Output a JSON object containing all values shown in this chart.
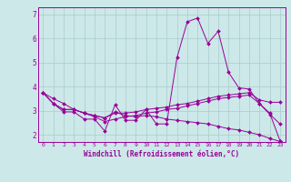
{
  "background_color": "#cce8e8",
  "line_color": "#990099",
  "grid_color": "#aacccc",
  "xlabel": "Windchill (Refroidissement éolien,°C)",
  "xlim": [
    -0.5,
    23.5
  ],
  "ylim": [
    1.7,
    7.3
  ],
  "yticks": [
    2,
    3,
    4,
    5,
    6,
    7
  ],
  "xticks": [
    0,
    1,
    2,
    3,
    4,
    5,
    6,
    7,
    8,
    9,
    10,
    11,
    12,
    13,
    14,
    15,
    16,
    17,
    18,
    19,
    20,
    21,
    22,
    23
  ],
  "lines": [
    {
      "x": [
        0,
        1,
        2,
        3,
        4,
        5,
        6,
        7,
        8,
        9,
        10,
        11,
        12,
        13,
        14,
        15,
        16,
        17,
        18,
        19,
        20,
        21,
        22,
        23
      ],
      "y": [
        3.75,
        3.3,
        2.95,
        2.95,
        2.65,
        2.65,
        2.15,
        3.25,
        2.6,
        2.6,
        3.05,
        2.45,
        2.45,
        5.2,
        6.7,
        6.85,
        5.8,
        6.3,
        4.6,
        3.95,
        3.9,
        3.3,
        2.85,
        2.45
      ]
    },
    {
      "x": [
        0,
        1,
        2,
        3,
        4,
        5,
        6,
        7,
        8,
        9,
        10,
        11,
        12,
        13,
        14,
        15,
        16,
        17,
        18,
        19,
        20,
        21,
        22,
        23
      ],
      "y": [
        3.75,
        3.3,
        3.05,
        3.05,
        2.9,
        2.8,
        2.7,
        2.9,
        2.9,
        2.95,
        3.05,
        3.1,
        3.15,
        3.25,
        3.3,
        3.4,
        3.5,
        3.6,
        3.65,
        3.7,
        3.75,
        3.45,
        3.35,
        3.35
      ]
    },
    {
      "x": [
        0,
        1,
        2,
        3,
        4,
        5,
        6,
        7,
        8,
        9,
        10,
        11,
        12,
        13,
        14,
        15,
        16,
        17,
        18,
        19,
        20,
        21,
        22,
        23
      ],
      "y": [
        3.75,
        3.5,
        3.3,
        3.05,
        2.9,
        2.75,
        2.55,
        2.65,
        2.75,
        2.8,
        2.9,
        2.95,
        3.05,
        3.1,
        3.2,
        3.3,
        3.4,
        3.5,
        3.55,
        3.6,
        3.65,
        3.3,
        2.9,
        1.75
      ]
    },
    {
      "x": [
        0,
        1,
        2,
        3,
        4,
        5,
        6,
        7,
        8,
        9,
        10,
        11,
        12,
        13,
        14,
        15,
        16,
        17,
        18,
        19,
        20,
        21,
        22,
        23
      ],
      "y": [
        3.75,
        3.3,
        3.05,
        3.05,
        2.9,
        2.8,
        2.7,
        2.95,
        2.8,
        2.75,
        2.8,
        2.75,
        2.65,
        2.6,
        2.55,
        2.5,
        2.45,
        2.35,
        2.25,
        2.2,
        2.1,
        2.0,
        1.85,
        1.72
      ]
    }
  ]
}
